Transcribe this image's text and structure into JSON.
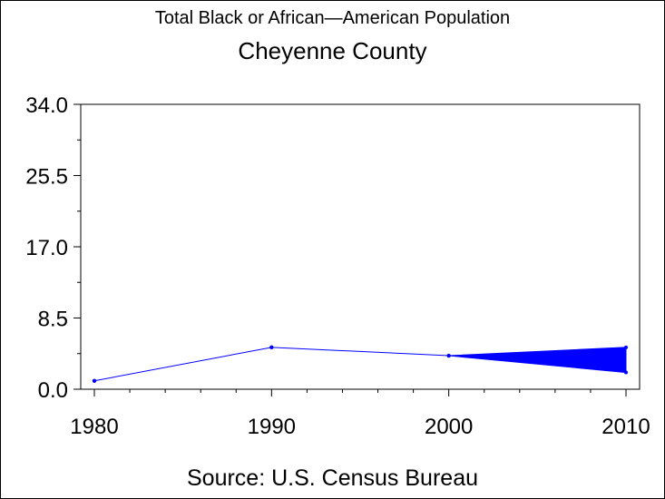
{
  "chart_data": {
    "type": "line",
    "title": "Total Black or African—American Population",
    "subtitle": "Cheyenne County",
    "footer": "Source: U.S. Census Bureau",
    "x_ticks": [
      "1980",
      "1990",
      "2000",
      "2010"
    ],
    "y_ticks": [
      "0.0",
      "8.5",
      "17.0",
      "25.5",
      "34.0"
    ],
    "xlim": [
      1980,
      2010
    ],
    "ylim": [
      0,
      34
    ],
    "series": [
      {
        "points": [
          [
            1980,
            1
          ],
          [
            1990,
            5
          ],
          [
            2000,
            4
          ]
        ]
      }
    ],
    "range": {
      "x": 2010,
      "low": 2,
      "high": 5
    },
    "color": "#0000ff"
  }
}
